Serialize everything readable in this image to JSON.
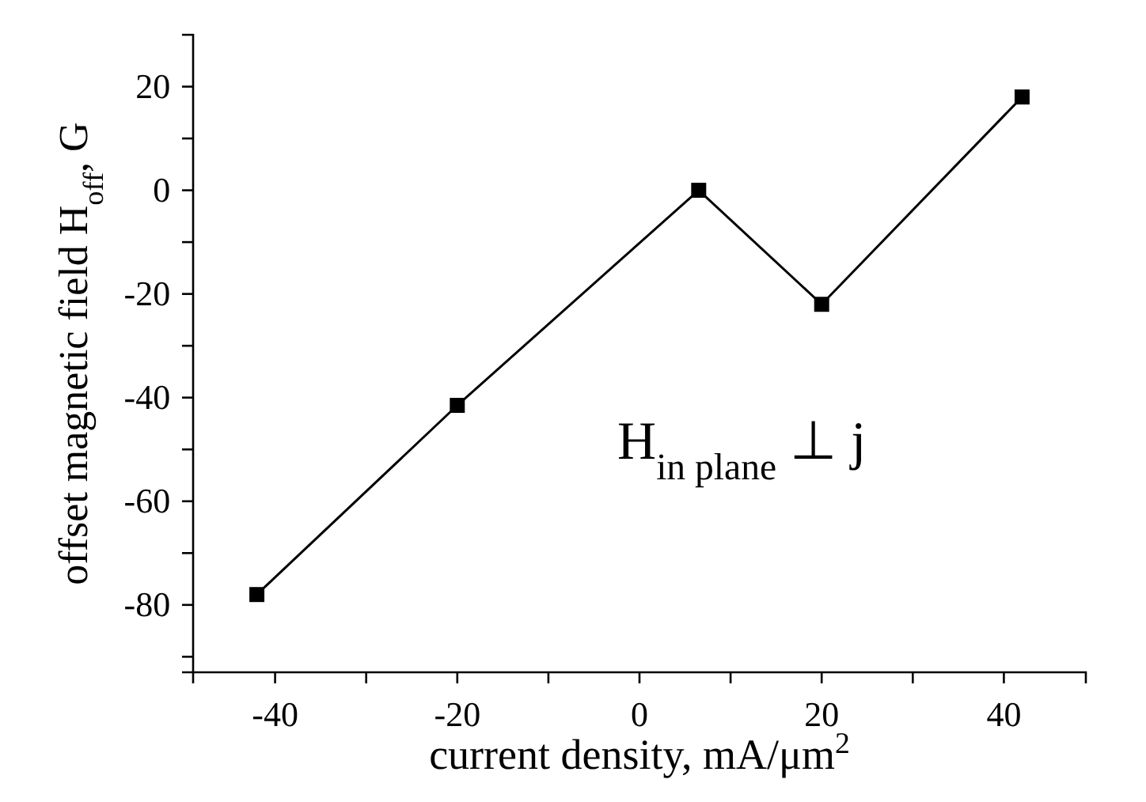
{
  "chart_data": {
    "type": "line",
    "xlabel": "current density, mA/μm$^{2}$",
    "ylabel": "offset magnetic field H$_{off}$, G",
    "x": [
      -42,
      -20,
      6.5,
      20,
      42
    ],
    "series": [
      {
        "color": "#000000",
        "values": [
          -78,
          -41.5,
          0,
          -22,
          18
        ]
      }
    ],
    "xlim": [
      -49,
      49
    ],
    "xticks": [
      -40,
      {
        "value": -30,
        "label": null
      },
      -20,
      {
        "value": -10,
        "label": null
      },
      0,
      {
        "value": 10,
        "label": null
      },
      20,
      {
        "value": 30,
        "label": null
      },
      40
    ],
    "ylim": [
      -93,
      30
    ],
    "yticks": [
      {
        "value": -90,
        "label": null
      },
      -80,
      {
        "value": -70,
        "label": null
      },
      -60,
      {
        "value": -50,
        "label": null
      },
      -40,
      {
        "value": -30,
        "label": null
      },
      -20,
      {
        "value": -10,
        "label": null
      },
      0,
      {
        "value": 10,
        "label": null
      },
      20
    ],
    "marker": "square",
    "line_style": "solid",
    "grid": false,
    "annotations": [
      "H$_{in plane}$ ⊥ j"
    ]
  }
}
